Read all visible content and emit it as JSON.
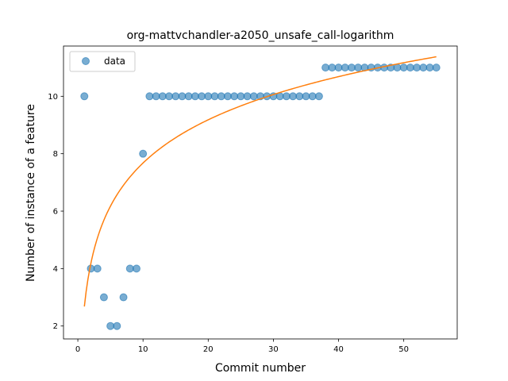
{
  "chart_data": {
    "type": "scatter",
    "title": "org-mattvchandler-a2050_unsafe_call-logarithm",
    "xlabel": "Commit number",
    "ylabel": "Number of instance of a feature",
    "xlim": [
      -2.2,
      58.2
    ],
    "ylim": [
      1.55,
      11.75
    ],
    "xticks": [
      0,
      10,
      20,
      30,
      40,
      50
    ],
    "yticks": [
      2,
      4,
      6,
      8,
      10
    ],
    "grid": false,
    "legend_position": "top-left",
    "series": [
      {
        "name": "data",
        "kind": "scatter",
        "color": "#1f77b4",
        "x": [
          1,
          2,
          3,
          4,
          5,
          6,
          7,
          8,
          9,
          10,
          11,
          12,
          13,
          14,
          15,
          16,
          17,
          18,
          19,
          20,
          21,
          22,
          23,
          24,
          25,
          26,
          27,
          28,
          29,
          30,
          31,
          32,
          33,
          34,
          35,
          36,
          37,
          38,
          39,
          40,
          41,
          42,
          43,
          44,
          45,
          46,
          47,
          48,
          49,
          50,
          51,
          52,
          53,
          54,
          55
        ],
        "y": [
          10,
          4,
          4,
          3,
          2,
          2,
          3,
          4,
          4,
          8,
          10,
          10,
          10,
          10,
          10,
          10,
          10,
          10,
          10,
          10,
          10,
          10,
          10,
          10,
          10,
          10,
          10,
          10,
          10,
          10,
          10,
          10,
          10,
          10,
          10,
          10,
          10,
          11,
          11,
          11,
          11,
          11,
          11,
          11,
          11,
          11,
          11,
          11,
          11,
          11,
          11,
          11,
          11,
          11,
          11
        ]
      },
      {
        "kind": "line",
        "color": "#ff7f0e",
        "fit": {
          "a": 2.68,
          "b": 2.17
        },
        "x_range": [
          1,
          55
        ]
      }
    ]
  }
}
